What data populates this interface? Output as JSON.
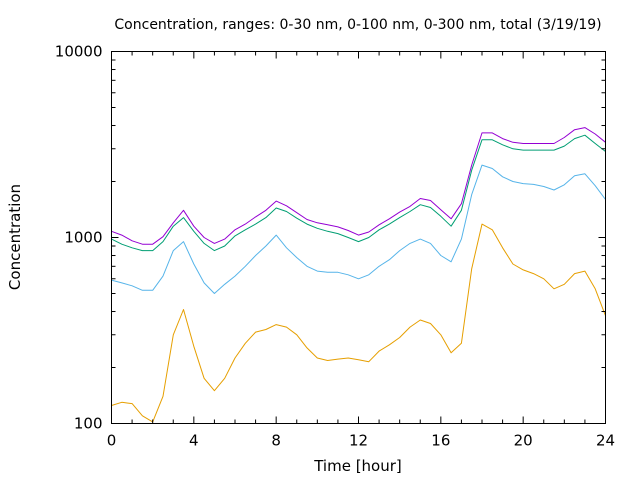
{
  "chart_data": {
    "type": "line",
    "title": "Concentration, ranges: 0-30 nm, 0-100 nm, 0-300 nm, total (3/19/19)",
    "xlabel": "Time [hour]",
    "ylabel": "Concentration",
    "xlim": [
      0,
      24
    ],
    "ylim": [
      100,
      10000
    ],
    "y_scale": "log",
    "grid": false,
    "legend": "none",
    "x_ticks": [
      0,
      4,
      8,
      12,
      16,
      20,
      24
    ],
    "x_tick_labels": [
      "0",
      "4",
      "8",
      "12",
      "16",
      "20",
      "24"
    ],
    "y_ticks": [
      100,
      1000,
      10000
    ],
    "y_tick_labels": [
      "100",
      "1000",
      "10000"
    ],
    "x": [
      0,
      0.5,
      1,
      1.5,
      2,
      2.5,
      3,
      3.5,
      4,
      4.5,
      5,
      5.5,
      6,
      6.5,
      7,
      7.5,
      8,
      8.5,
      9,
      9.5,
      10,
      10.5,
      11,
      11.5,
      12,
      12.5,
      13,
      13.5,
      14,
      14.5,
      15,
      15.5,
      16,
      16.5,
      17,
      17.5,
      18,
      18.5,
      19,
      19.5,
      20,
      20.5,
      21,
      21.5,
      22,
      22.5,
      23,
      23.5,
      24
    ],
    "series": [
      {
        "color": "#e69f00",
        "values": [
          125,
          130,
          128,
          110,
          102,
          140,
          300,
          410,
          260,
          175,
          150,
          175,
          225,
          270,
          310,
          320,
          340,
          330,
          300,
          255,
          225,
          218,
          222,
          225,
          220,
          215,
          245,
          265,
          290,
          330,
          360,
          345,
          300,
          240,
          270,
          680,
          1180,
          1100,
          880,
          720,
          670,
          640,
          600,
          530,
          560,
          640,
          660,
          530,
          380
        ]
      },
      {
        "color": "#56b4e9",
        "values": [
          590,
          570,
          550,
          520,
          520,
          620,
          850,
          950,
          720,
          570,
          500,
          560,
          620,
          700,
          800,
          900,
          1030,
          880,
          780,
          700,
          660,
          650,
          650,
          630,
          600,
          630,
          700,
          760,
          850,
          930,
          980,
          930,
          800,
          740,
          980,
          1700,
          2450,
          2350,
          2120,
          2000,
          1950,
          1930,
          1880,
          1800,
          1920,
          2150,
          2200,
          1900,
          1600
        ]
      },
      {
        "color": "#009e73",
        "values": [
          980,
          920,
          880,
          850,
          850,
          950,
          1150,
          1280,
          1080,
          930,
          850,
          900,
          1020,
          1100,
          1180,
          1280,
          1440,
          1380,
          1270,
          1180,
          1120,
          1080,
          1050,
          1000,
          950,
          1000,
          1100,
          1180,
          1280,
          1380,
          1500,
          1450,
          1300,
          1150,
          1400,
          2300,
          3350,
          3350,
          3150,
          3000,
          2950,
          2950,
          2950,
          2950,
          3100,
          3400,
          3550,
          3200,
          2900
        ]
      },
      {
        "color": "#9400d3",
        "values": [
          1080,
          1030,
          960,
          920,
          920,
          1010,
          1200,
          1400,
          1150,
          1000,
          930,
          980,
          1100,
          1180,
          1290,
          1400,
          1570,
          1480,
          1360,
          1250,
          1200,
          1170,
          1140,
          1090,
          1030,
          1070,
          1170,
          1260,
          1370,
          1470,
          1620,
          1580,
          1410,
          1260,
          1520,
          2450,
          3650,
          3650,
          3400,
          3250,
          3200,
          3200,
          3200,
          3200,
          3450,
          3800,
          3900,
          3600,
          3250
        ]
      }
    ]
  }
}
